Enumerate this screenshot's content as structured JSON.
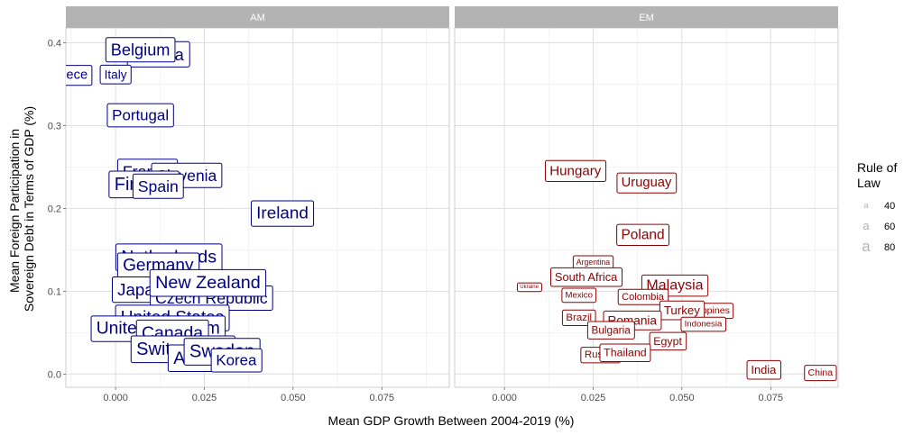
{
  "chart_data": {
    "type": "scatter",
    "xlabel": "Mean GDP Growth Between 2004-2019 (%)",
    "ylabel_lines": [
      "Mean Foreign Participation in",
      "Sovereign Debt in Terms of GDP (%)"
    ],
    "xlim": [
      -0.014,
      0.094
    ],
    "ylim": [
      -0.016,
      0.418
    ],
    "x_ticks": [
      0.0,
      0.025,
      0.05,
      0.075
    ],
    "x_tick_labels": [
      "0.000",
      "0.025",
      "0.050",
      "0.075"
    ],
    "y_ticks": [
      0.0,
      0.1,
      0.2,
      0.3,
      0.4
    ],
    "y_tick_labels": [
      "0.0",
      "0.1",
      "0.2",
      "0.3",
      "0.4"
    ],
    "grid": true,
    "legend": {
      "title_lines": [
        "Rule of",
        "Law"
      ],
      "keys": [
        {
          "label": "40",
          "value": 40
        },
        {
          "label": "60",
          "value": 60
        },
        {
          "label": "80",
          "value": 80
        }
      ],
      "position": "right"
    },
    "panels": [
      {
        "name": "AM",
        "color": "#000080",
        "points": [
          {
            "label": "Austria",
            "x": 0.012,
            "y": 0.386,
            "law": 88
          },
          {
            "label": "Belgium",
            "x": 0.007,
            "y": 0.392,
            "law": 87
          },
          {
            "label": "Greece",
            "x": -0.014,
            "y": 0.362,
            "law": 68
          },
          {
            "label": "Italy",
            "x": 0.0,
            "y": 0.362,
            "law": 62
          },
          {
            "label": "Portugal",
            "x": 0.007,
            "y": 0.313,
            "law": 80
          },
          {
            "label": "France",
            "x": 0.009,
            "y": 0.245,
            "law": 85
          },
          {
            "label": "Slovenia",
            "x": 0.02,
            "y": 0.24,
            "law": 83
          },
          {
            "label": "Finland",
            "x": 0.008,
            "y": 0.23,
            "law": 97
          },
          {
            "label": "Spain",
            "x": 0.012,
            "y": 0.227,
            "law": 84
          },
          {
            "label": "Ireland",
            "x": 0.047,
            "y": 0.195,
            "law": 91
          },
          {
            "label": "Netherlands",
            "x": 0.015,
            "y": 0.142,
            "law": 95
          },
          {
            "label": "Germany",
            "x": 0.012,
            "y": 0.132,
            "law": 92
          },
          {
            "label": "Japan",
            "x": 0.007,
            "y": 0.102,
            "law": 90
          },
          {
            "label": "Czech Republic",
            "x": 0.027,
            "y": 0.092,
            "law": 85
          },
          {
            "label": "New Zealand",
            "x": 0.026,
            "y": 0.111,
            "law": 96
          },
          {
            "label": "United States",
            "x": 0.016,
            "y": 0.069,
            "law": 92
          },
          {
            "label": "United Kingdom",
            "x": 0.012,
            "y": 0.056,
            "law": 93
          },
          {
            "label": "Canada",
            "x": 0.016,
            "y": 0.05,
            "law": 94
          },
          {
            "label": "Switzerland",
            "x": 0.019,
            "y": 0.031,
            "law": 97
          },
          {
            "label": "Australia",
            "x": 0.026,
            "y": 0.02,
            "law": 95
          },
          {
            "label": "Sweden",
            "x": 0.03,
            "y": 0.028,
            "law": 97
          },
          {
            "label": "Korea",
            "x": 0.034,
            "y": 0.017,
            "law": 80
          }
        ]
      },
      {
        "name": "EM",
        "color": "#8b0000",
        "points": [
          {
            "label": "Hungary",
            "x": 0.02,
            "y": 0.246,
            "law": 70
          },
          {
            "label": "Uruguay",
            "x": 0.04,
            "y": 0.232,
            "law": 68
          },
          {
            "label": "Poland",
            "x": 0.039,
            "y": 0.169,
            "law": 72
          },
          {
            "label": "Argentina",
            "x": 0.025,
            "y": 0.135,
            "law": 35
          },
          {
            "label": "South Africa",
            "x": 0.023,
            "y": 0.117,
            "law": 58
          },
          {
            "label": "Ukraine",
            "x": 0.007,
            "y": 0.106,
            "law": 20
          },
          {
            "label": "Malaysia",
            "x": 0.048,
            "y": 0.108,
            "law": 75
          },
          {
            "label": "Mexico",
            "x": 0.021,
            "y": 0.096,
            "law": 40
          },
          {
            "label": "Colombia",
            "x": 0.039,
            "y": 0.094,
            "law": 48
          },
          {
            "label": "Philippines",
            "x": 0.057,
            "y": 0.077,
            "law": 45
          },
          {
            "label": "Turkey",
            "x": 0.05,
            "y": 0.077,
            "law": 60
          },
          {
            "label": "Indonesia",
            "x": 0.056,
            "y": 0.061,
            "law": 40
          },
          {
            "label": "Brazil",
            "x": 0.021,
            "y": 0.069,
            "law": 50
          },
          {
            "label": "Romania",
            "x": 0.036,
            "y": 0.065,
            "law": 62
          },
          {
            "label": "Bulgaria",
            "x": 0.03,
            "y": 0.053,
            "law": 52
          },
          {
            "label": "Egypt",
            "x": 0.046,
            "y": 0.04,
            "law": 55
          },
          {
            "label": "Russia",
            "x": 0.027,
            "y": 0.024,
            "law": 50
          },
          {
            "label": "Thailand",
            "x": 0.034,
            "y": 0.026,
            "law": 55
          },
          {
            "label": "India",
            "x": 0.073,
            "y": 0.005,
            "law": 58
          },
          {
            "label": "China",
            "x": 0.089,
            "y": 0.002,
            "law": 45
          }
        ]
      }
    ]
  }
}
